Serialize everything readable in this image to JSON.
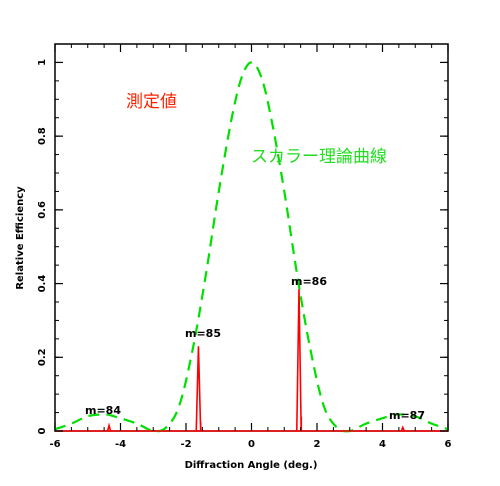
{
  "chart_data": {
    "type": "line",
    "xlabel": "Diffraction Angle (deg.)",
    "ylabel": "Relative Efficiency",
    "xlim": [
      -6,
      6
    ],
    "ylim": [
      0,
      1.05
    ],
    "x_ticks": [
      -6,
      -4,
      -2,
      0,
      2,
      4,
      6
    ],
    "y_ticks": [
      0,
      0.2,
      0.4,
      0.6,
      0.8,
      1
    ],
    "x_tick_labels": [
      "-6",
      "-4",
      "-2",
      "0",
      "2",
      "4",
      "6"
    ],
    "y_tick_labels": [
      "0",
      "0.2",
      "0.4",
      "0.6",
      "0.8",
      "1"
    ],
    "grid": false,
    "series": [
      {
        "name": "測定値",
        "style": "solid",
        "color": "#ff0000",
        "peaks": [
          {
            "x": -4.35,
            "y": 0.015
          },
          {
            "x": -1.62,
            "y": 0.23
          },
          {
            "x": 1.45,
            "y": 0.385
          },
          {
            "x": 4.62,
            "y": 0.01
          }
        ]
      },
      {
        "name": "スカラー理論曲線",
        "style": "dashed",
        "color": "#00e000",
        "x": [
          -6,
          -5.5,
          -5,
          -4.5,
          -4.2,
          -3.5,
          -3,
          -2.6,
          -2.2,
          -1.8,
          -1.4,
          -1.0,
          -0.6,
          -0.3,
          0,
          0.3,
          0.6,
          1.0,
          1.4,
          1.8,
          2.2,
          2.6,
          3,
          3.5,
          4.2,
          4.5,
          5,
          5.5,
          6
        ],
        "y": [
          0.005,
          0.02,
          0.04,
          0.045,
          0.04,
          0.02,
          0.0,
          0.01,
          0.07,
          0.22,
          0.42,
          0.65,
          0.85,
          0.96,
          1.0,
          0.96,
          0.85,
          0.65,
          0.42,
          0.22,
          0.07,
          0.01,
          0.0,
          0.02,
          0.04,
          0.045,
          0.04,
          0.02,
          0.005
        ]
      }
    ],
    "annotations": [
      "m=84",
      "m=85",
      "m=86",
      "m=87"
    ]
  },
  "labels": {
    "measured": "測定値",
    "scalar_theory": "スカラー理論曲線",
    "m84": "m=84",
    "m85": "m=85",
    "m86": "m=86",
    "m87": "m=87"
  },
  "colors": {
    "measured": "#ff0000",
    "theory": "#00e000",
    "axes": "#000000"
  }
}
